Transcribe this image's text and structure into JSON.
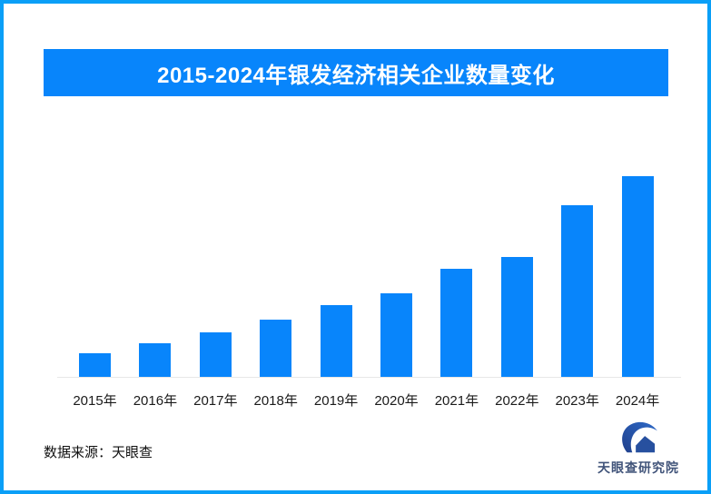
{
  "frame": {
    "border_color": "#0a9ff7",
    "background_color": "#ffffff"
  },
  "header": {
    "title": "2015-2024年银发经济相关企业数量变化",
    "bg_color": "#0885fb",
    "text_color": "#ffffff"
  },
  "chart_data": {
    "type": "bar",
    "title": "2015-2024年银发经济相关企业数量变化",
    "categories": [
      "2015年",
      "2016年",
      "2017年",
      "2018年",
      "2019年",
      "2020年",
      "2021年",
      "2022年",
      "2023年",
      "2024年"
    ],
    "values_relative_pct": [
      11.8,
      16.7,
      22.2,
      28.5,
      35.7,
      41.6,
      53.8,
      59.7,
      85.5,
      100
    ],
    "note": "No y-axis, gridlines or value labels shown; values are bar heights as percent of the tallest (2024) bar",
    "bar_color": "#0885fb",
    "axis_line_color": "#e7e7e7",
    "gridlines": false,
    "y_axis_shown": false,
    "legend": "none",
    "xlabel": "",
    "ylabel": ""
  },
  "footer": {
    "source_label": "数据来源：天眼查",
    "logo_text": "天眼查研究院",
    "logo_icon": "tianyancha-eye-swoosh-house-icon",
    "logo_color_dark": "#20408c",
    "logo_color_light": "#2e6ac8",
    "logo_text_color": "#41547a"
  }
}
